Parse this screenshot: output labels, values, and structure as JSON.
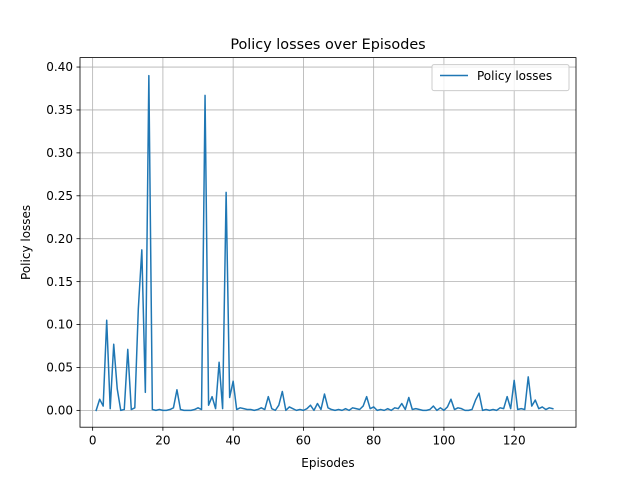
{
  "chart_data": {
    "type": "line",
    "title": "Policy losses over Episodes",
    "xlabel": "Episodes",
    "ylabel": "Policy losses",
    "xlim": [
      -3.6,
      137.6
    ],
    "ylim": [
      -0.0196,
      0.411
    ],
    "xticks": [
      0,
      20,
      40,
      60,
      80,
      100,
      120
    ],
    "yticks": [
      0.0,
      0.05,
      0.1,
      0.15,
      0.2,
      0.25,
      0.3,
      0.35,
      0.4
    ],
    "ytick_labels": [
      "0.00",
      "0.05",
      "0.10",
      "0.15",
      "0.20",
      "0.25",
      "0.30",
      "0.35",
      "0.40"
    ],
    "grid": true,
    "legend_position": "upper right",
    "series": [
      {
        "name": "Policy losses",
        "color": "#1f77b4",
        "x": [
          1,
          2,
          3,
          4,
          5,
          6,
          7,
          8,
          9,
          10,
          11,
          12,
          13,
          14,
          15,
          16,
          17,
          18,
          19,
          20,
          21,
          22,
          23,
          24,
          25,
          26,
          27,
          28,
          29,
          30,
          31,
          32,
          33,
          34,
          35,
          36,
          37,
          38,
          39,
          40,
          41,
          42,
          43,
          44,
          45,
          46,
          47,
          48,
          49,
          50,
          51,
          52,
          53,
          54,
          55,
          56,
          57,
          58,
          59,
          60,
          61,
          62,
          63,
          64,
          65,
          66,
          67,
          68,
          69,
          70,
          71,
          72,
          73,
          74,
          75,
          76,
          77,
          78,
          79,
          80,
          81,
          82,
          83,
          84,
          85,
          86,
          87,
          88,
          89,
          90,
          91,
          92,
          93,
          94,
          95,
          96,
          97,
          98,
          99,
          100,
          101,
          102,
          103,
          104,
          105,
          106,
          107,
          108,
          109,
          110,
          111,
          112,
          113,
          114,
          115,
          116,
          117,
          118,
          119,
          120,
          121,
          122,
          123,
          124,
          125,
          126,
          127,
          128,
          129,
          130,
          131
        ],
        "values": [
          0.0,
          0.013,
          0.005,
          0.105,
          0.002,
          0.077,
          0.025,
          0.0,
          0.001,
          0.071,
          0.001,
          0.003,
          0.118,
          0.187,
          0.021,
          0.39,
          0.001,
          0.0,
          0.001,
          0.0,
          0.0,
          0.001,
          0.003,
          0.024,
          0.001,
          0.0,
          0.0,
          0.0,
          0.001,
          0.003,
          0.001,
          0.367,
          0.006,
          0.016,
          0.002,
          0.056,
          0.002,
          0.254,
          0.015,
          0.034,
          0.001,
          0.003,
          0.002,
          0.001,
          0.001,
          0.0,
          0.001,
          0.003,
          0.001,
          0.016,
          0.002,
          0.0,
          0.006,
          0.022,
          0.0,
          0.004,
          0.002,
          0.0,
          0.001,
          0.0,
          0.002,
          0.006,
          0.0,
          0.008,
          0.001,
          0.019,
          0.003,
          0.001,
          0.0,
          0.001,
          0.0,
          0.002,
          0.0,
          0.003,
          0.002,
          0.001,
          0.005,
          0.016,
          0.002,
          0.004,
          0.0,
          0.001,
          0.0,
          0.002,
          0.0,
          0.003,
          0.002,
          0.008,
          0.001,
          0.015,
          0.001,
          0.002,
          0.001,
          0.0,
          0.0,
          0.001,
          0.005,
          0.0,
          0.003,
          0.0,
          0.004,
          0.013,
          0.001,
          0.003,
          0.002,
          0.0,
          0.0,
          0.001,
          0.012,
          0.02,
          0.0,
          0.001,
          0.0,
          0.001,
          0.0,
          0.003,
          0.002,
          0.016,
          0.002,
          0.035,
          0.001,
          0.002,
          0.001,
          0.039,
          0.005,
          0.012,
          0.002,
          0.004,
          0.001,
          0.003,
          0.002
        ]
      }
    ]
  }
}
